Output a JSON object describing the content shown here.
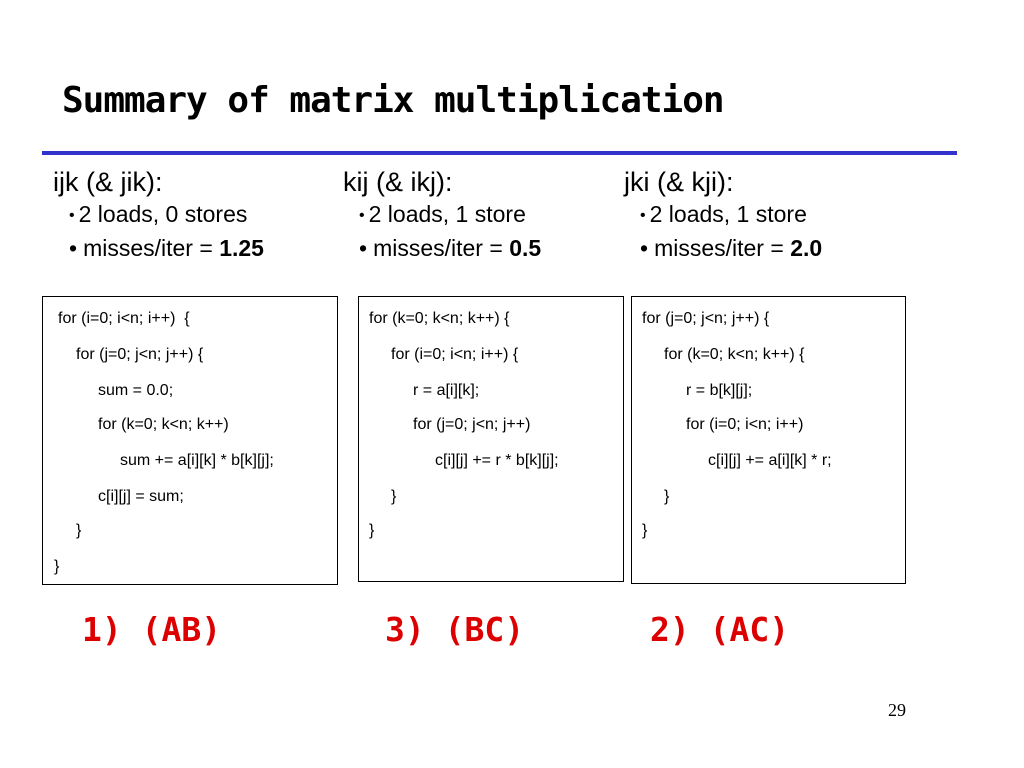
{
  "slide": {
    "title": "Summary of matrix multiplication",
    "page_number": "29",
    "accent_color": "#3333cc",
    "answer_color": "#dd0000"
  },
  "columns": [
    {
      "heading": "ijk (& jik):",
      "bullet1": "2 loads, 0 stores",
      "bullet2_prefix": "misses/iter = ",
      "bullet2_value": "1.25",
      "code": [
        "for (i=0; i<n; i++)  {",
        "for (j=0; j<n; j++) {",
        "sum = 0.0;",
        "for (k=0; k<n; k++)",
        "sum += a[i][k] * b[k][j];",
        "c[i][j] = sum;",
        "}",
        "}"
      ],
      "answer": "1) (AB)"
    },
    {
      "heading": "kij (& ikj):",
      "bullet1": "2 loads, 1 store",
      "bullet2_prefix": "misses/iter = ",
      "bullet2_value": "0.5",
      "code": [
        "for (k=0; k<n; k++) {",
        "for (i=0; i<n; i++) {",
        "r = a[i][k];",
        "for (j=0; j<n; j++)",
        "c[i][j] += r * b[k][j];",
        "}",
        "}"
      ],
      "answer": "3) (BC)"
    },
    {
      "heading": "jki (& kji):",
      "bullet1": "2 loads, 1 store",
      "bullet2_prefix": "misses/iter = ",
      "bullet2_value": "2.0",
      "code": [
        "for (j=0; j<n; j++) {",
        "for (k=0; k<n; k++) {",
        "r = b[k][j];",
        "for (i=0; i<n; i++)",
        "c[i][j] += a[i][k] * r;",
        "}",
        "}"
      ],
      "answer": "2) (AC)"
    }
  ]
}
